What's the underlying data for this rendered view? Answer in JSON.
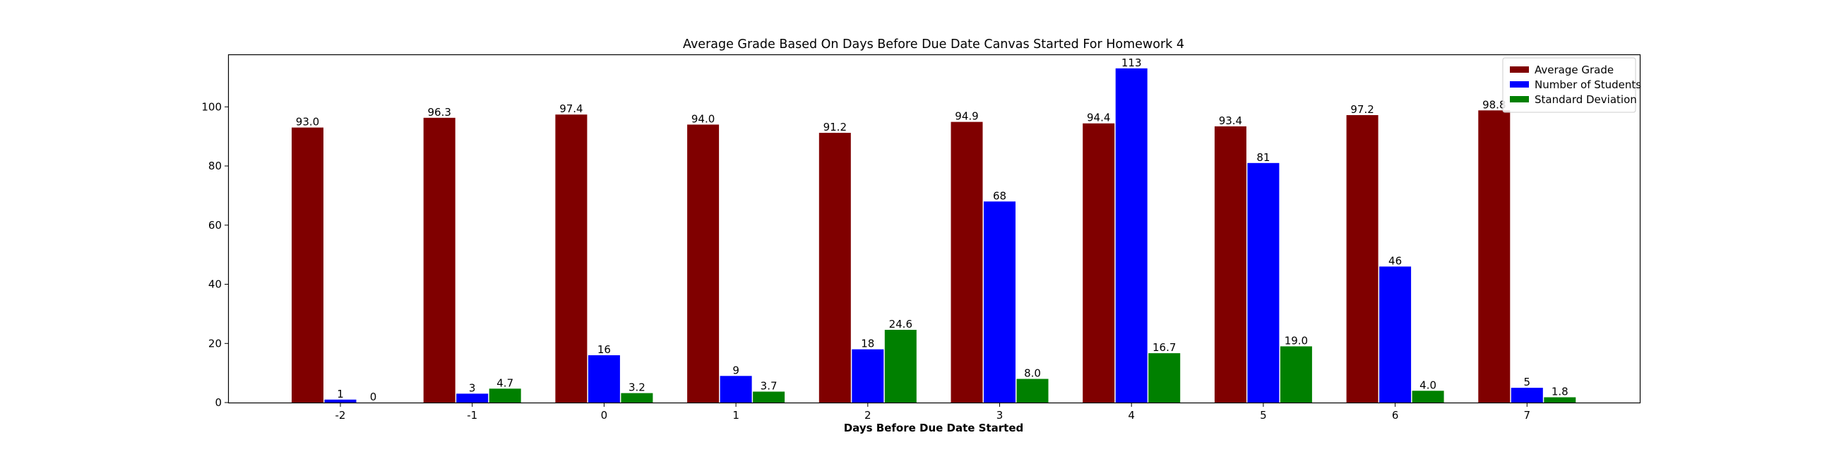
{
  "chart_data": {
    "type": "bar",
    "title": "Average Grade Based On Days Before Due Date Canvas Started For Homework 4",
    "xlabel": "Days Before Due Date Started",
    "ylabel": "",
    "categories": [
      "-2",
      "-1",
      "0",
      "1",
      "2",
      "3",
      "4",
      "5",
      "6",
      "7"
    ],
    "ylim": [
      0,
      117.5
    ],
    "yticks": [
      0,
      20,
      40,
      60,
      80,
      100
    ],
    "grid": false,
    "legend_position": "top-right",
    "series": [
      {
        "name": "Average Grade",
        "color": "#800000",
        "values": [
          93.0,
          96.3,
          97.4,
          94.0,
          91.2,
          94.9,
          94.4,
          93.4,
          97.2,
          98.8
        ],
        "labels": [
          "93.0",
          "96.3",
          "97.4",
          "94.0",
          "91.2",
          "94.9",
          "94.4",
          "93.4",
          "97.2",
          "98.8"
        ]
      },
      {
        "name": "Number of Students",
        "color": "#0000ff",
        "values": [
          1,
          3,
          16,
          9,
          18,
          68,
          113,
          81,
          46,
          5
        ],
        "labels": [
          "1",
          "3",
          "16",
          "9",
          "18",
          "68",
          "113",
          "81",
          "46",
          "5"
        ]
      },
      {
        "name": "Standard Deviation",
        "color": "#008000",
        "values": [
          0,
          4.7,
          3.2,
          3.7,
          24.6,
          8.0,
          16.7,
          19.0,
          4.0,
          1.8
        ],
        "labels": [
          "0",
          "4.7",
          "3.2",
          "3.7",
          "24.6",
          "8.0",
          "16.7",
          "19.0",
          "4.0",
          "1.8"
        ]
      }
    ]
  }
}
